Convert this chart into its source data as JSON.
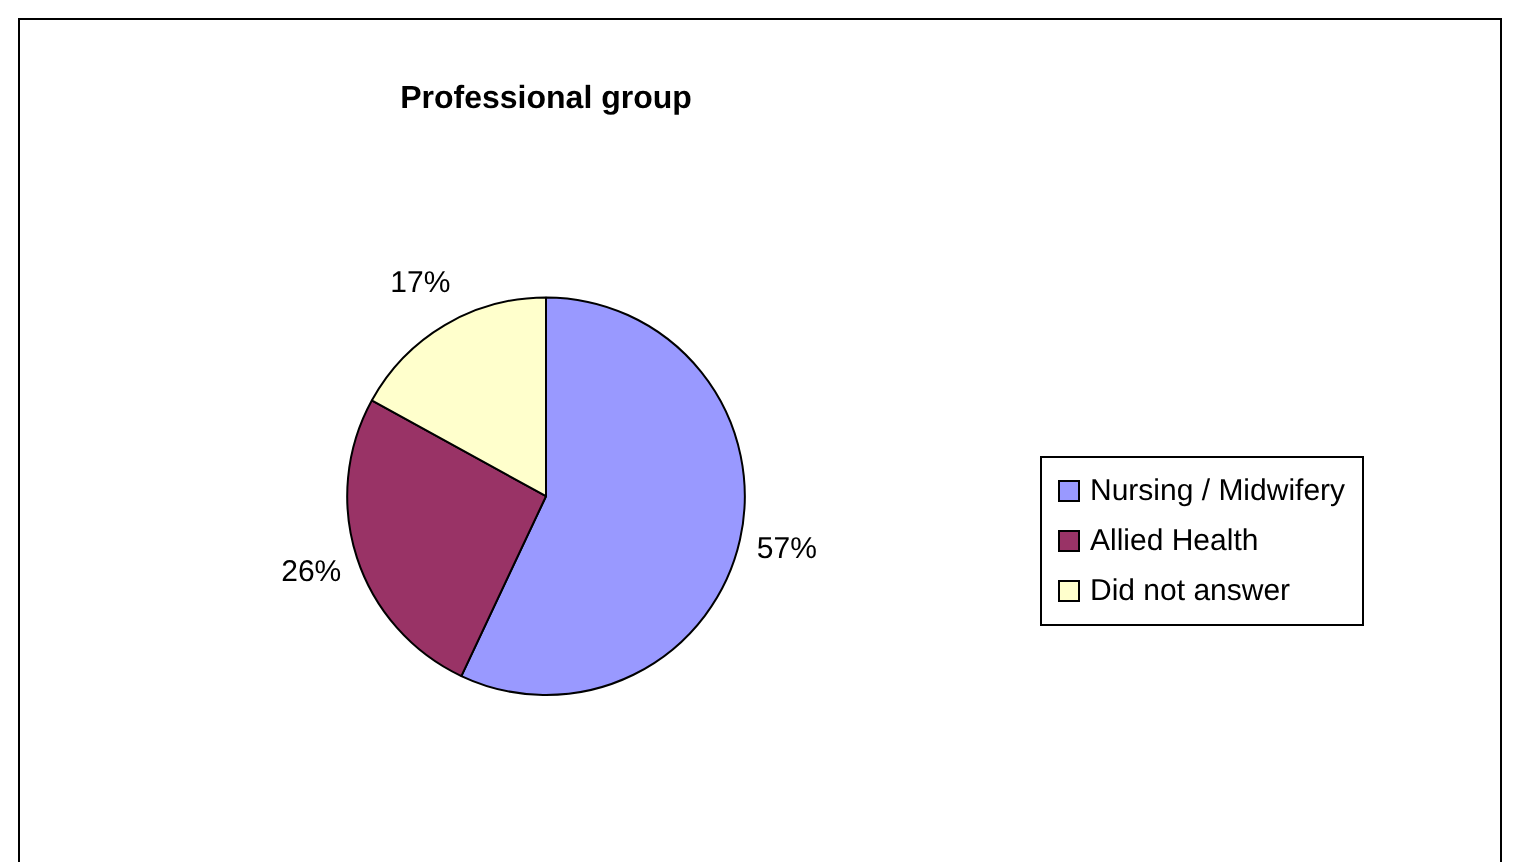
{
  "chart_data": {
    "type": "pie",
    "title": "Professional group",
    "categories": [
      "Nursing / Midwifery",
      "Allied Health",
      "Did not answer"
    ],
    "values": [
      57,
      26,
      17
    ],
    "colors": [
      "#9999ff",
      "#993366",
      "#ffffcc"
    ],
    "value_labels": [
      "57%",
      "26%",
      "17%"
    ],
    "legend": "right"
  }
}
